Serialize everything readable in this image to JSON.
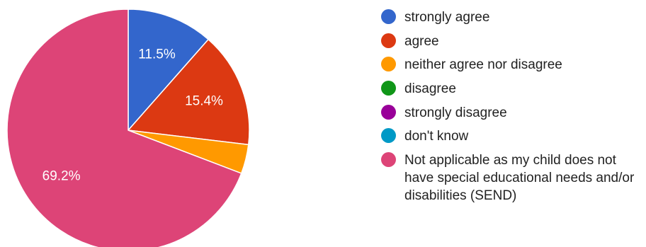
{
  "chart_data": {
    "type": "pie",
    "start_angle_deg": 90,
    "direction": "clockwise",
    "slices": [
      {
        "label": "strongly agree",
        "value": 11.5,
        "display": "11.5%",
        "color": "#3366cc"
      },
      {
        "label": "agree",
        "value": 15.4,
        "display": "15.4%",
        "color": "#dc3912"
      },
      {
        "label": "neither agree nor disagree",
        "value": 3.9,
        "display": "",
        "color": "#ff9900"
      },
      {
        "label": "disagree",
        "value": 0,
        "display": "",
        "color": "#109618"
      },
      {
        "label": "strongly disagree",
        "value": 0,
        "display": "",
        "color": "#990099"
      },
      {
        "label": "don't know",
        "value": 0,
        "display": "",
        "color": "#0099c6"
      },
      {
        "label": "Not applicable as my child does not have special educational needs and/or disabilities (SEND)",
        "value": 69.2,
        "display": "69.2%",
        "color": "#dd4477"
      }
    ],
    "legend_position": "right"
  }
}
